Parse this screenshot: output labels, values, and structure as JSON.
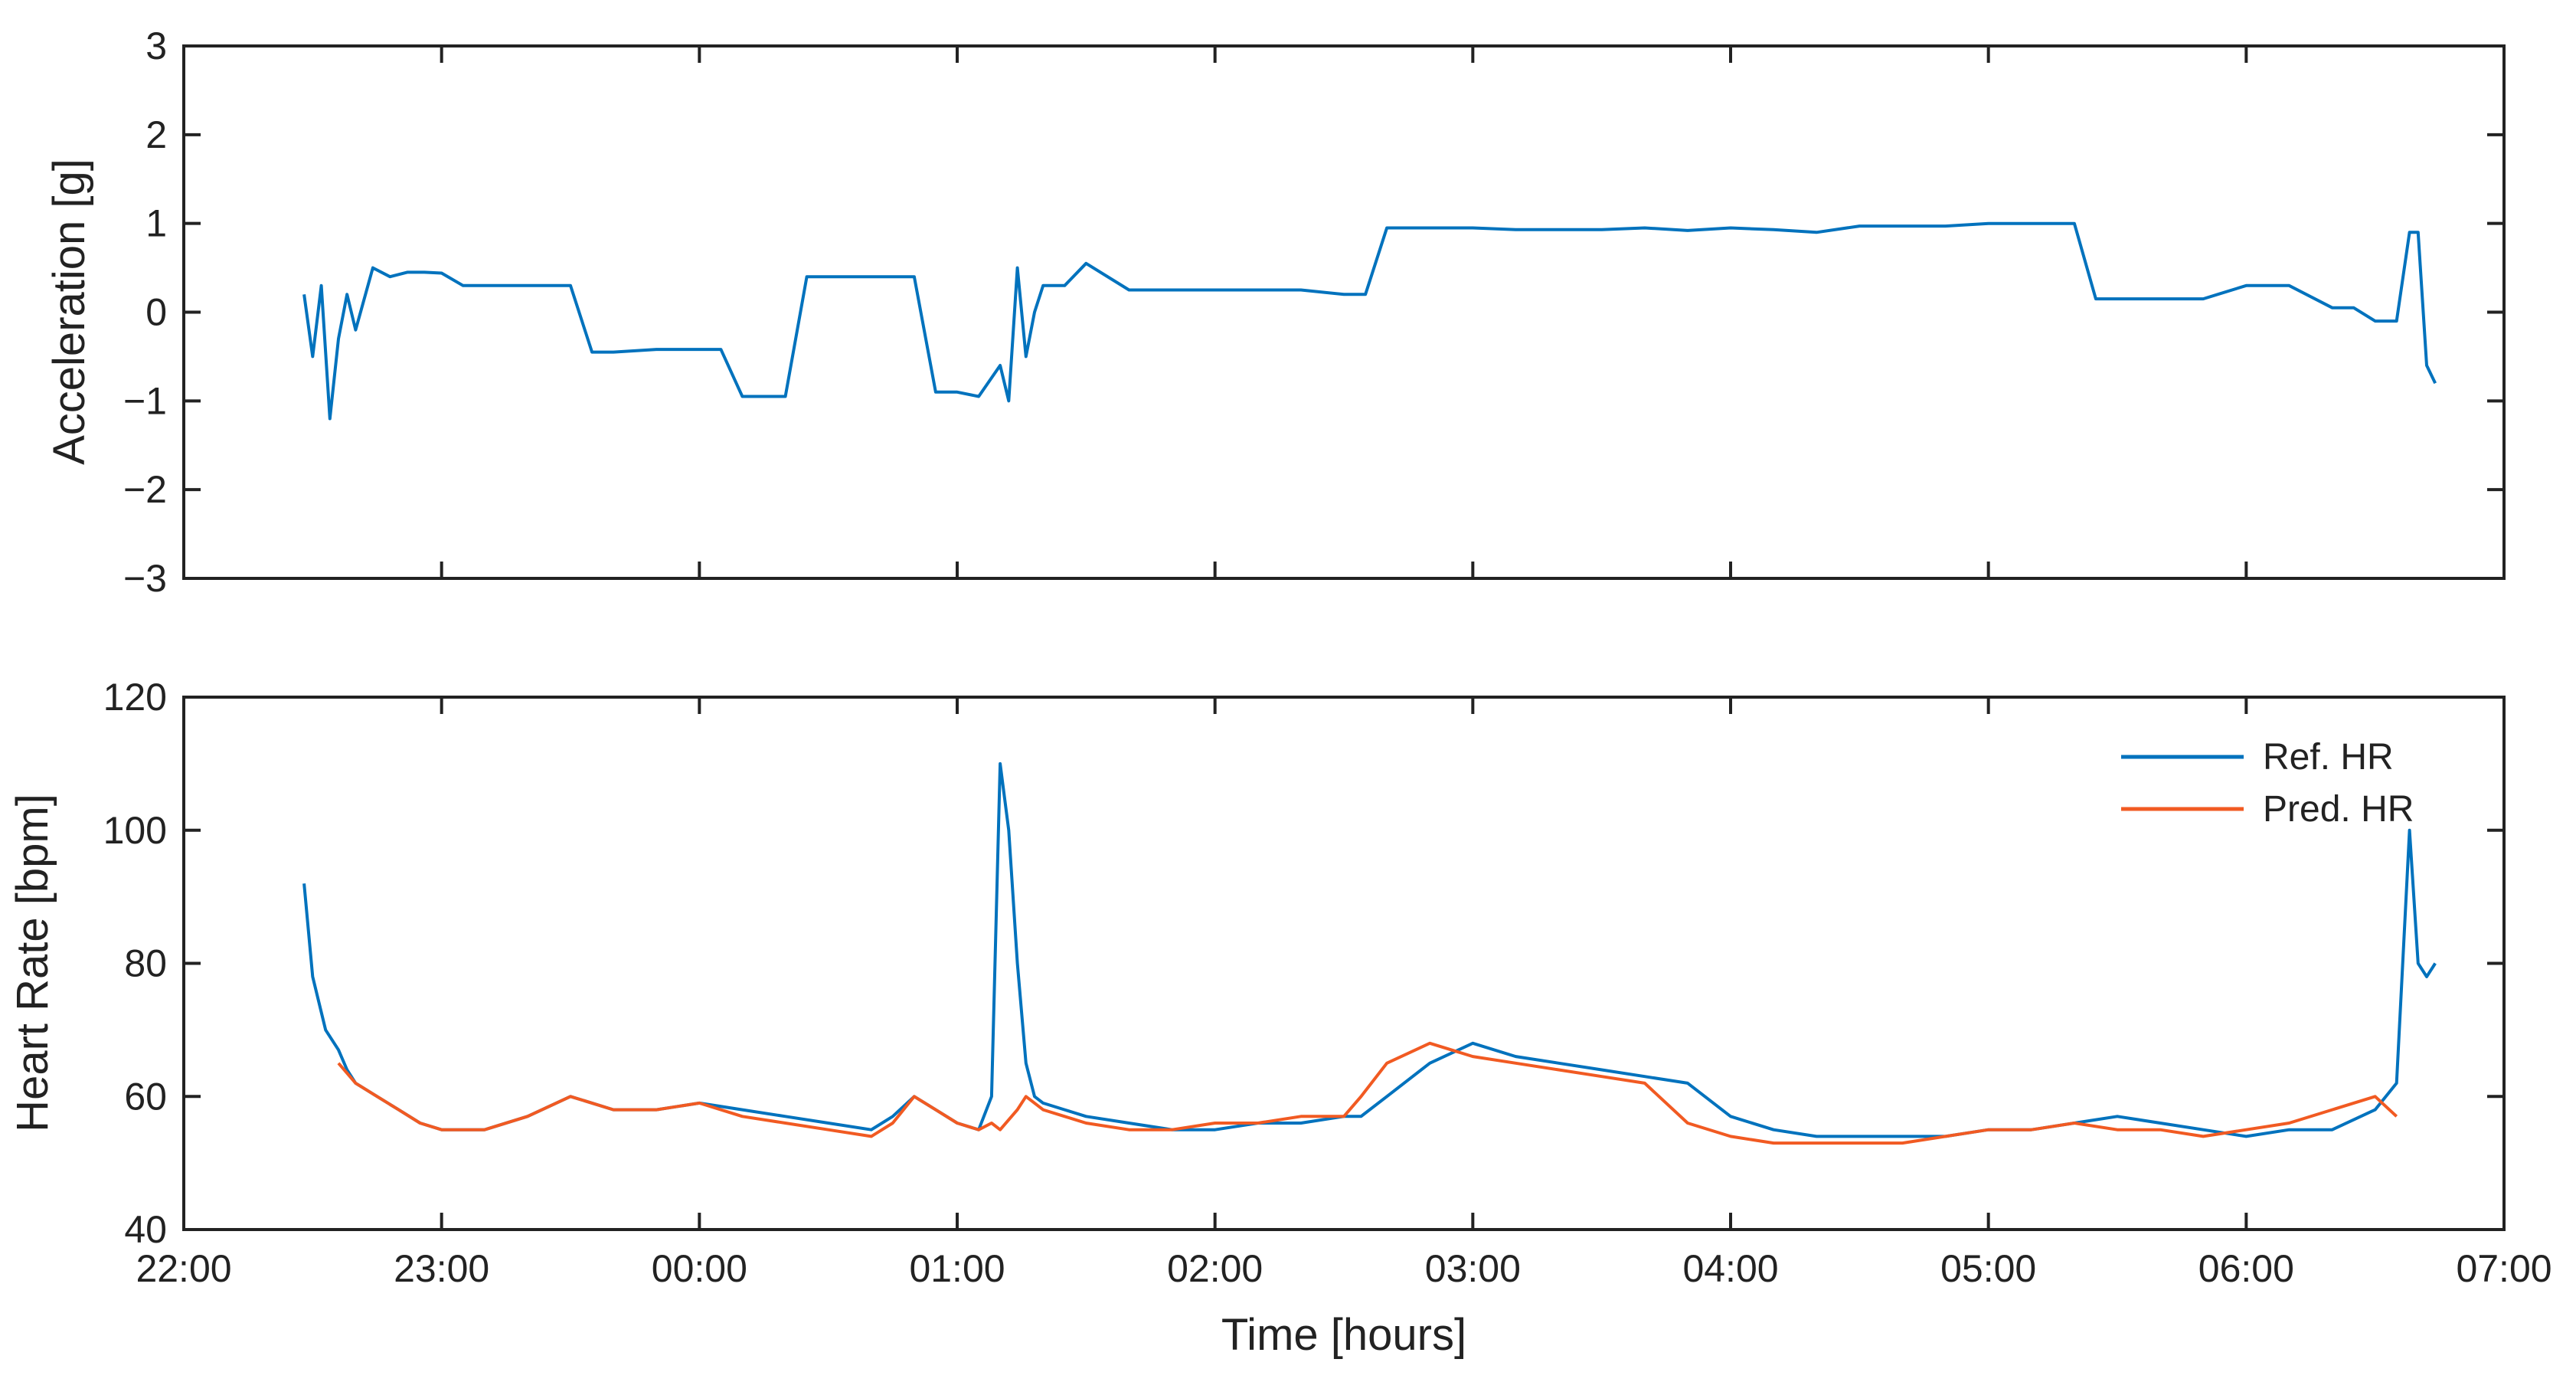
{
  "chart_data": [
    {
      "type": "line",
      "title": "",
      "xlabel": "",
      "ylabel": "Acceleration [g]",
      "xlim": [
        "22:00",
        "07:00"
      ],
      "ylim": [
        -3,
        3
      ],
      "yticks": [
        "3",
        "2",
        "1",
        "0",
        "−1",
        "−2",
        "−3"
      ],
      "grid": false,
      "series": [
        {
          "color": "#0072BD",
          "x": [
            "22:28",
            "22:30",
            "22:32",
            "22:34",
            "22:36",
            "22:38",
            "22:40",
            "22:44",
            "22:48",
            "22:52",
            "22:56",
            "23:00",
            "23:05",
            "23:10",
            "23:20",
            "23:30",
            "23:35",
            "23:40",
            "23:50",
            "24:00",
            "24:05",
            "24:10",
            "24:15",
            "24:20",
            "24:25",
            "24:30",
            "24:40",
            "24:50",
            "24:55",
            "25:00",
            "25:05",
            "25:10",
            "25:12",
            "25:14",
            "25:16",
            "25:18",
            "25:20",
            "25:25",
            "25:30",
            "25:40",
            "25:50",
            "26:00",
            "26:10",
            "26:20",
            "26:30",
            "26:35",
            "26:40",
            "26:50",
            "27:00",
            "27:10",
            "27:20",
            "27:30",
            "27:40",
            "27:50",
            "28:00",
            "28:10",
            "28:20",
            "28:30",
            "28:40",
            "28:50",
            "29:00",
            "29:10",
            "29:20",
            "29:25",
            "29:30",
            "29:40",
            "29:50",
            "30:00",
            "30:10",
            "30:20",
            "30:25",
            "30:30",
            "30:35",
            "30:38",
            "30:40",
            "30:42",
            "30:44"
          ],
          "y": [
            0.2,
            -0.5,
            0.3,
            -1.2,
            -0.3,
            0.2,
            -0.2,
            0.5,
            0.4,
            0.45,
            0.45,
            0.44,
            0.3,
            0.3,
            0.3,
            0.3,
            -0.45,
            -0.45,
            -0.42,
            -0.42,
            -0.42,
            -0.95,
            -0.95,
            -0.95,
            0.4,
            0.4,
            0.4,
            0.4,
            -0.9,
            -0.9,
            -0.95,
            -0.6,
            -1.0,
            0.5,
            -0.5,
            0.0,
            0.3,
            0.3,
            0.55,
            0.25,
            0.25,
            0.25,
            0.25,
            0.25,
            0.2,
            0.2,
            0.95,
            0.95,
            0.95,
            0.93,
            0.93,
            0.93,
            0.95,
            0.92,
            0.95,
            0.93,
            0.9,
            0.97,
            0.97,
            0.97,
            1.0,
            1.0,
            1.0,
            0.15,
            0.15,
            0.15,
            0.15,
            0.3,
            0.3,
            0.05,
            0.05,
            -0.1,
            -0.1,
            0.9,
            0.9,
            -0.6,
            -0.8
          ]
        }
      ]
    },
    {
      "type": "line",
      "title": "",
      "xlabel": "Time [hours]",
      "ylabel": "Heart Rate [bpm]",
      "xlim": [
        "22:00",
        "07:00"
      ],
      "ylim": [
        40,
        120
      ],
      "xticks": [
        "22:00",
        "23:00",
        "00:00",
        "01:00",
        "02:00",
        "03:00",
        "04:00",
        "05:00",
        "06:00",
        "07:00"
      ],
      "yticks": [
        "120",
        "100",
        "80",
        "60",
        "40"
      ],
      "legend": "top-right",
      "grid": false,
      "series": [
        {
          "name": "Ref. HR",
          "color": "#0072BD",
          "x": [
            "22:28",
            "22:30",
            "22:33",
            "22:36",
            "22:38",
            "22:40",
            "22:45",
            "22:50",
            "22:55",
            "23:00",
            "23:10",
            "23:20",
            "23:30",
            "23:35",
            "23:40",
            "23:50",
            "24:00",
            "24:10",
            "24:20",
            "24:30",
            "24:40",
            "24:45",
            "24:50",
            "24:55",
            "25:00",
            "25:05",
            "25:08",
            "25:10",
            "25:12",
            "25:14",
            "25:16",
            "25:18",
            "25:20",
            "25:25",
            "25:30",
            "25:40",
            "25:50",
            "26:00",
            "26:10",
            "26:20",
            "26:30",
            "26:34",
            "26:40",
            "26:50",
            "27:00",
            "27:10",
            "27:20",
            "27:30",
            "27:40",
            "27:50",
            "28:00",
            "28:10",
            "28:20",
            "28:30",
            "28:40",
            "28:50",
            "29:00",
            "29:10",
            "29:20",
            "29:30",
            "29:40",
            "29:50",
            "30:00",
            "30:10",
            "30:20",
            "30:30",
            "30:35",
            "30:38",
            "30:40",
            "30:42",
            "30:44"
          ],
          "y": [
            92,
            78,
            70,
            67,
            64,
            62,
            60,
            58,
            56,
            55,
            55,
            57,
            60,
            59,
            58,
            58,
            59,
            58,
            57,
            56,
            55,
            57,
            60,
            58,
            56,
            55,
            60,
            110,
            100,
            80,
            65,
            60,
            59,
            58,
            57,
            56,
            55,
            55,
            56,
            56,
            57,
            57,
            60,
            65,
            68,
            66,
            65,
            64,
            63,
            62,
            57,
            55,
            54,
            54,
            54,
            54,
            55,
            55,
            56,
            57,
            56,
            55,
            54,
            55,
            55,
            58,
            62,
            100,
            80,
            78,
            80
          ]
        },
        {
          "name": "Pred. HR",
          "color": "#F15A22",
          "x": [
            "22:36",
            "22:40",
            "22:45",
            "22:50",
            "22:55",
            "23:00",
            "23:10",
            "23:20",
            "23:30",
            "23:35",
            "23:40",
            "23:50",
            "24:00",
            "24:10",
            "24:20",
            "24:30",
            "24:40",
            "24:45",
            "24:50",
            "24:55",
            "25:00",
            "25:05",
            "25:08",
            "25:10",
            "25:14",
            "25:16",
            "25:18",
            "25:20",
            "25:25",
            "25:30",
            "25:40",
            "25:50",
            "26:00",
            "26:10",
            "26:20",
            "26:30",
            "26:34",
            "26:40",
            "26:50",
            "27:00",
            "27:10",
            "27:20",
            "27:30",
            "27:40",
            "27:50",
            "28:00",
            "28:10",
            "28:20",
            "28:30",
            "28:40",
            "28:50",
            "29:00",
            "29:10",
            "29:20",
            "29:30",
            "29:40",
            "29:50",
            "30:00",
            "30:10",
            "30:20",
            "30:30",
            "30:35"
          ],
          "y": [
            65,
            62,
            60,
            58,
            56,
            55,
            55,
            57,
            60,
            59,
            58,
            58,
            59,
            57,
            56,
            55,
            54,
            56,
            60,
            58,
            56,
            55,
            56,
            55,
            58,
            60,
            59,
            58,
            57,
            56,
            55,
            55,
            56,
            56,
            57,
            57,
            60,
            65,
            68,
            66,
            65,
            64,
            63,
            62,
            56,
            54,
            53,
            53,
            53,
            53,
            54,
            55,
            55,
            56,
            55,
            55,
            54,
            55,
            56,
            58,
            60,
            57
          ]
        }
      ]
    }
  ]
}
